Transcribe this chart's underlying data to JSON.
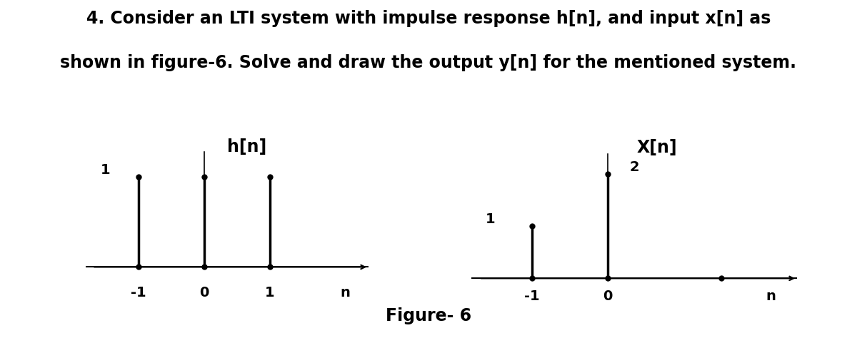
{
  "title_line1": "4. Consider an LTI system with impulse response h[n], and input x[n] as",
  "title_line2": "shown in figure-6. Solve and draw the output y[n] for the mentioned system.",
  "figure_caption": "Figure- 6",
  "h_n": {
    "label": "h[n]",
    "n_values": [
      -1,
      0,
      1
    ],
    "amplitudes": [
      1,
      1,
      1
    ],
    "y_label_val": "1",
    "x_ticks": [
      -1,
      0,
      1
    ],
    "xlim": [
      -1.8,
      2.5
    ],
    "ylim": [
      -0.3,
      1.5
    ]
  },
  "x_n": {
    "label": "X[n]",
    "n_values": [
      -1,
      0
    ],
    "amplitudes": [
      1,
      2
    ],
    "y_label_val_1": "1",
    "y_label_val_2": "2",
    "x_ticks": [
      -1,
      0
    ],
    "dot_n": 1.5,
    "xlim": [
      -1.8,
      2.5
    ],
    "ylim": [
      -0.3,
      2.8
    ]
  },
  "bg_color": "#ffffff",
  "stem_color": "#000000",
  "axis_color": "#000000",
  "text_color": "#000000",
  "font_size_title": 17,
  "font_size_label": 16,
  "font_size_tick": 14
}
